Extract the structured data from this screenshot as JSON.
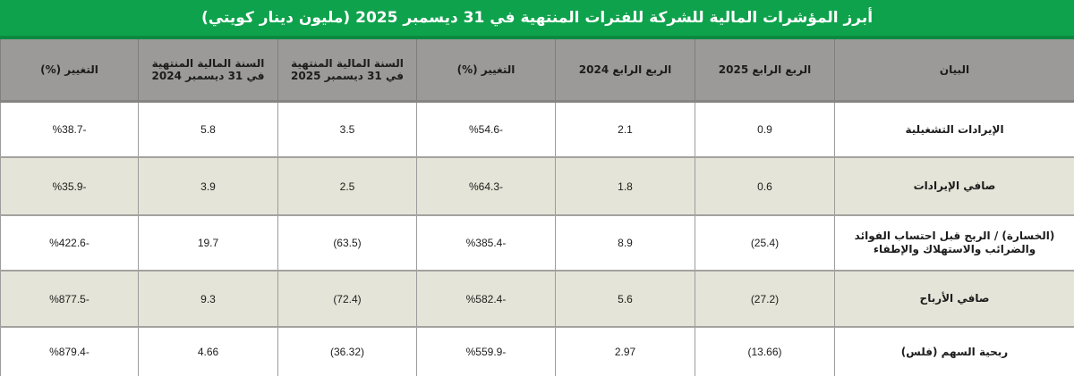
{
  "title": "أبرز المؤشرات المالية للشركة للفترات المنتهية في 31 ديسمبر 2025 (مليون دينار كويتي)",
  "colors": {
    "title_bg": "#0ea24c",
    "header_bg": "#9b9a98",
    "row_alt_bg": "#e5e4d8",
    "row_bg": "#ffffff"
  },
  "headers": {
    "item": "البيان",
    "q4_2025": "الربع الرابع 2025",
    "q4_2024": "الربع الرابع 2024",
    "q_change": "التغيير (%)",
    "fy_2025": "السنة المالية المنتهية في 31 ديسمبر 2025",
    "fy_2024": "السنة المالية المنتهية في 31 ديسمبر 2024",
    "fy_change": "التغيير (%)"
  },
  "rows": [
    {
      "item": "الإيرادات التشغيلية",
      "q4_2025": "0.9",
      "q4_2024": "2.1",
      "q_change": "%54.6-",
      "fy_2025": "3.5",
      "fy_2024": "5.8",
      "fy_change": "%38.7-"
    },
    {
      "item": "صافي الإيرادات",
      "q4_2025": "0.6",
      "q4_2024": "1.8",
      "q_change": "%64.3-",
      "fy_2025": "2.5",
      "fy_2024": "3.9",
      "fy_change": "%35.9-"
    },
    {
      "item": "(الخسارة) / الربح قبل احتساب الفوائد والضرائب والاستهلاك والإطفاء",
      "q4_2025": "(25.4)",
      "q4_2024": "8.9",
      "q_change": "%385.4-",
      "fy_2025": "(63.5)",
      "fy_2024": "19.7",
      "fy_change": "%422.6-"
    },
    {
      "item": "صافي الأرباح",
      "q4_2025": "(27.2)",
      "q4_2024": "5.6",
      "q_change": "%582.4-",
      "fy_2025": "(72.4)",
      "fy_2024": "9.3",
      "fy_change": "%877.5-"
    },
    {
      "item": "ربحية السهم (فلس)",
      "q4_2025": "(13.66)",
      "q4_2024": "2.97",
      "q_change": "%559.9-",
      "fy_2025": "(36.32)",
      "fy_2024": "4.66",
      "fy_change": "%879.4-"
    }
  ]
}
